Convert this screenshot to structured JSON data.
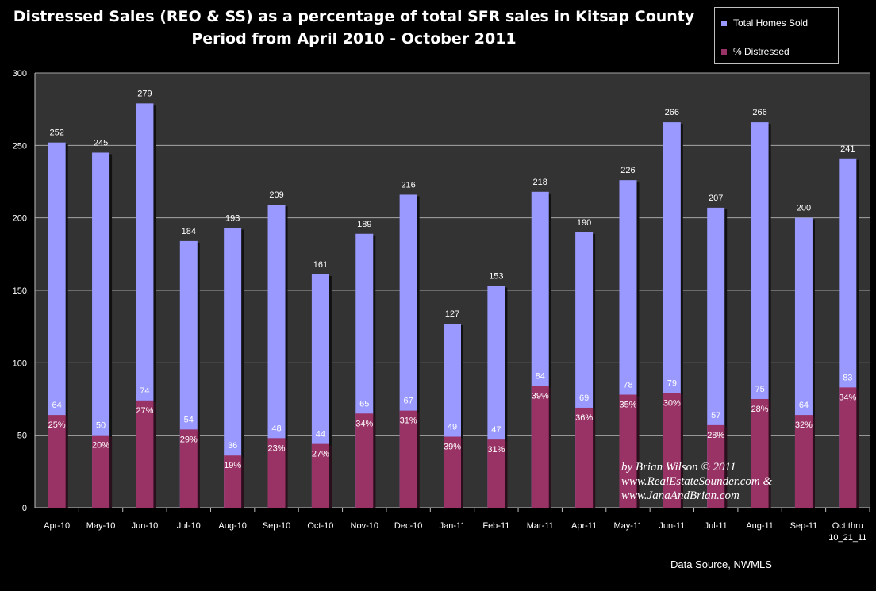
{
  "header": {
    "title_line1": "Distressed Sales (REO & SS) as a percentage of total SFR sales in Kitsap County",
    "title_line2": "Period from April 2010 - October 2011"
  },
  "legend": {
    "items": [
      {
        "label": "Total Homes Sold",
        "color": "#9999ff"
      },
      {
        "label": "% Distressed",
        "color": "#993366"
      }
    ]
  },
  "signature": {
    "line1": "by Brian Wilson © 2011",
    "line2": "www.RealEstateSounder.com &",
    "line3": "www.JanaAndBrian.com"
  },
  "source": "Data Source, NWMLS",
  "colors": {
    "background": "#000000",
    "plot_background": "#333333",
    "total_bar": "#9999ff",
    "distressed_bar": "#993366",
    "gridline": "#a6a6a6"
  },
  "chart_data": {
    "type": "bar",
    "title": "Distressed Sales (REO & SS) as a percentage of total SFR sales in Kitsap County",
    "subtitle": "Period from April 2010 - October 2011",
    "categories": [
      "Apr-10",
      "May-10",
      "Jun-10",
      "Jul-10",
      "Aug-10",
      "Sep-10",
      "Oct-10",
      "Nov-10",
      "Dec-10",
      "Jan-11",
      "Feb-11",
      "Mar-11",
      "Apr-11",
      "May-11",
      "Jun-11",
      "Jul-11",
      "Aug-11",
      "Sep-11",
      "Oct thru 10_21_11"
    ],
    "series": [
      {
        "name": "Total Homes Sold",
        "values": [
          252,
          245,
          279,
          184,
          193,
          209,
          161,
          189,
          216,
          127,
          153,
          218,
          190,
          226,
          266,
          207,
          266,
          200,
          241
        ]
      },
      {
        "name": "% Distressed",
        "values": [
          64,
          50,
          74,
          54,
          36,
          48,
          44,
          65,
          67,
          49,
          47,
          84,
          69,
          78,
          79,
          57,
          75,
          64,
          83
        ]
      }
    ],
    "percent_labels": [
      "25%",
      "20%",
      "27%",
      "29%",
      "19%",
      "23%",
      "27%",
      "34%",
      "31%",
      "39%",
      "31%",
      "39%",
      "36%",
      "35%",
      "30%",
      "28%",
      "28%",
      "32%",
      "34%"
    ],
    "yticks": [
      0,
      50,
      100,
      150,
      200,
      250,
      300
    ],
    "ylim": [
      0,
      300
    ],
    "grid": true,
    "legend_position": "top-right",
    "overlapped_bars": true
  }
}
